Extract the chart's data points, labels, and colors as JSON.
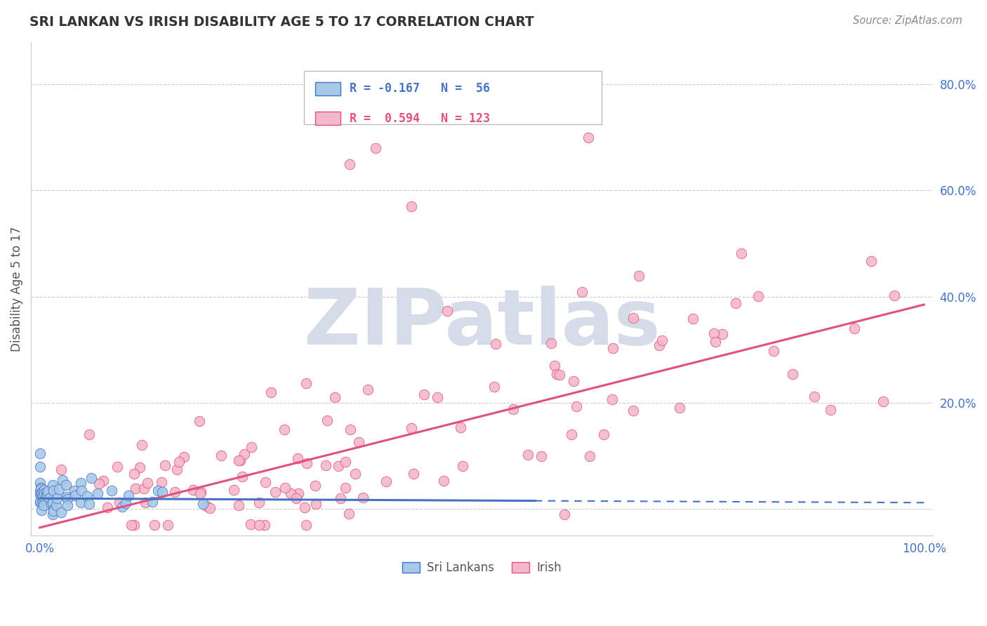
{
  "title": "SRI LANKAN VS IRISH DISABILITY AGE 5 TO 17 CORRELATION CHART",
  "source": "Source: ZipAtlas.com",
  "ylabel": "Disability Age 5 to 17",
  "xlim": [
    0,
    1
  ],
  "ylim": [
    -0.05,
    0.88
  ],
  "yticks": [
    0.0,
    0.2,
    0.4,
    0.6,
    0.8
  ],
  "ytick_labels": [
    "",
    "20.0%",
    "40.0%",
    "60.0%",
    "80.0%"
  ],
  "legend_R_sri": "-0.167",
  "legend_N_sri": "56",
  "legend_R_irish": "0.594",
  "legend_N_irish": "123",
  "sri_color": "#A8C8E8",
  "irish_color": "#F5B8C8",
  "sri_line_color": "#4472C4",
  "irish_line_color": "#E05080",
  "grid_color": "#CCCCCC",
  "watermark": "ZIPatlas",
  "watermark_color": "#D5DCE8",
  "background_color": "#FFFFFF",
  "sri_seed": 10,
  "irish_seed": 20,
  "title_color": "#333333",
  "source_color": "#888888",
  "axis_label_color": "#4472C4",
  "ylabel_color": "#555555"
}
